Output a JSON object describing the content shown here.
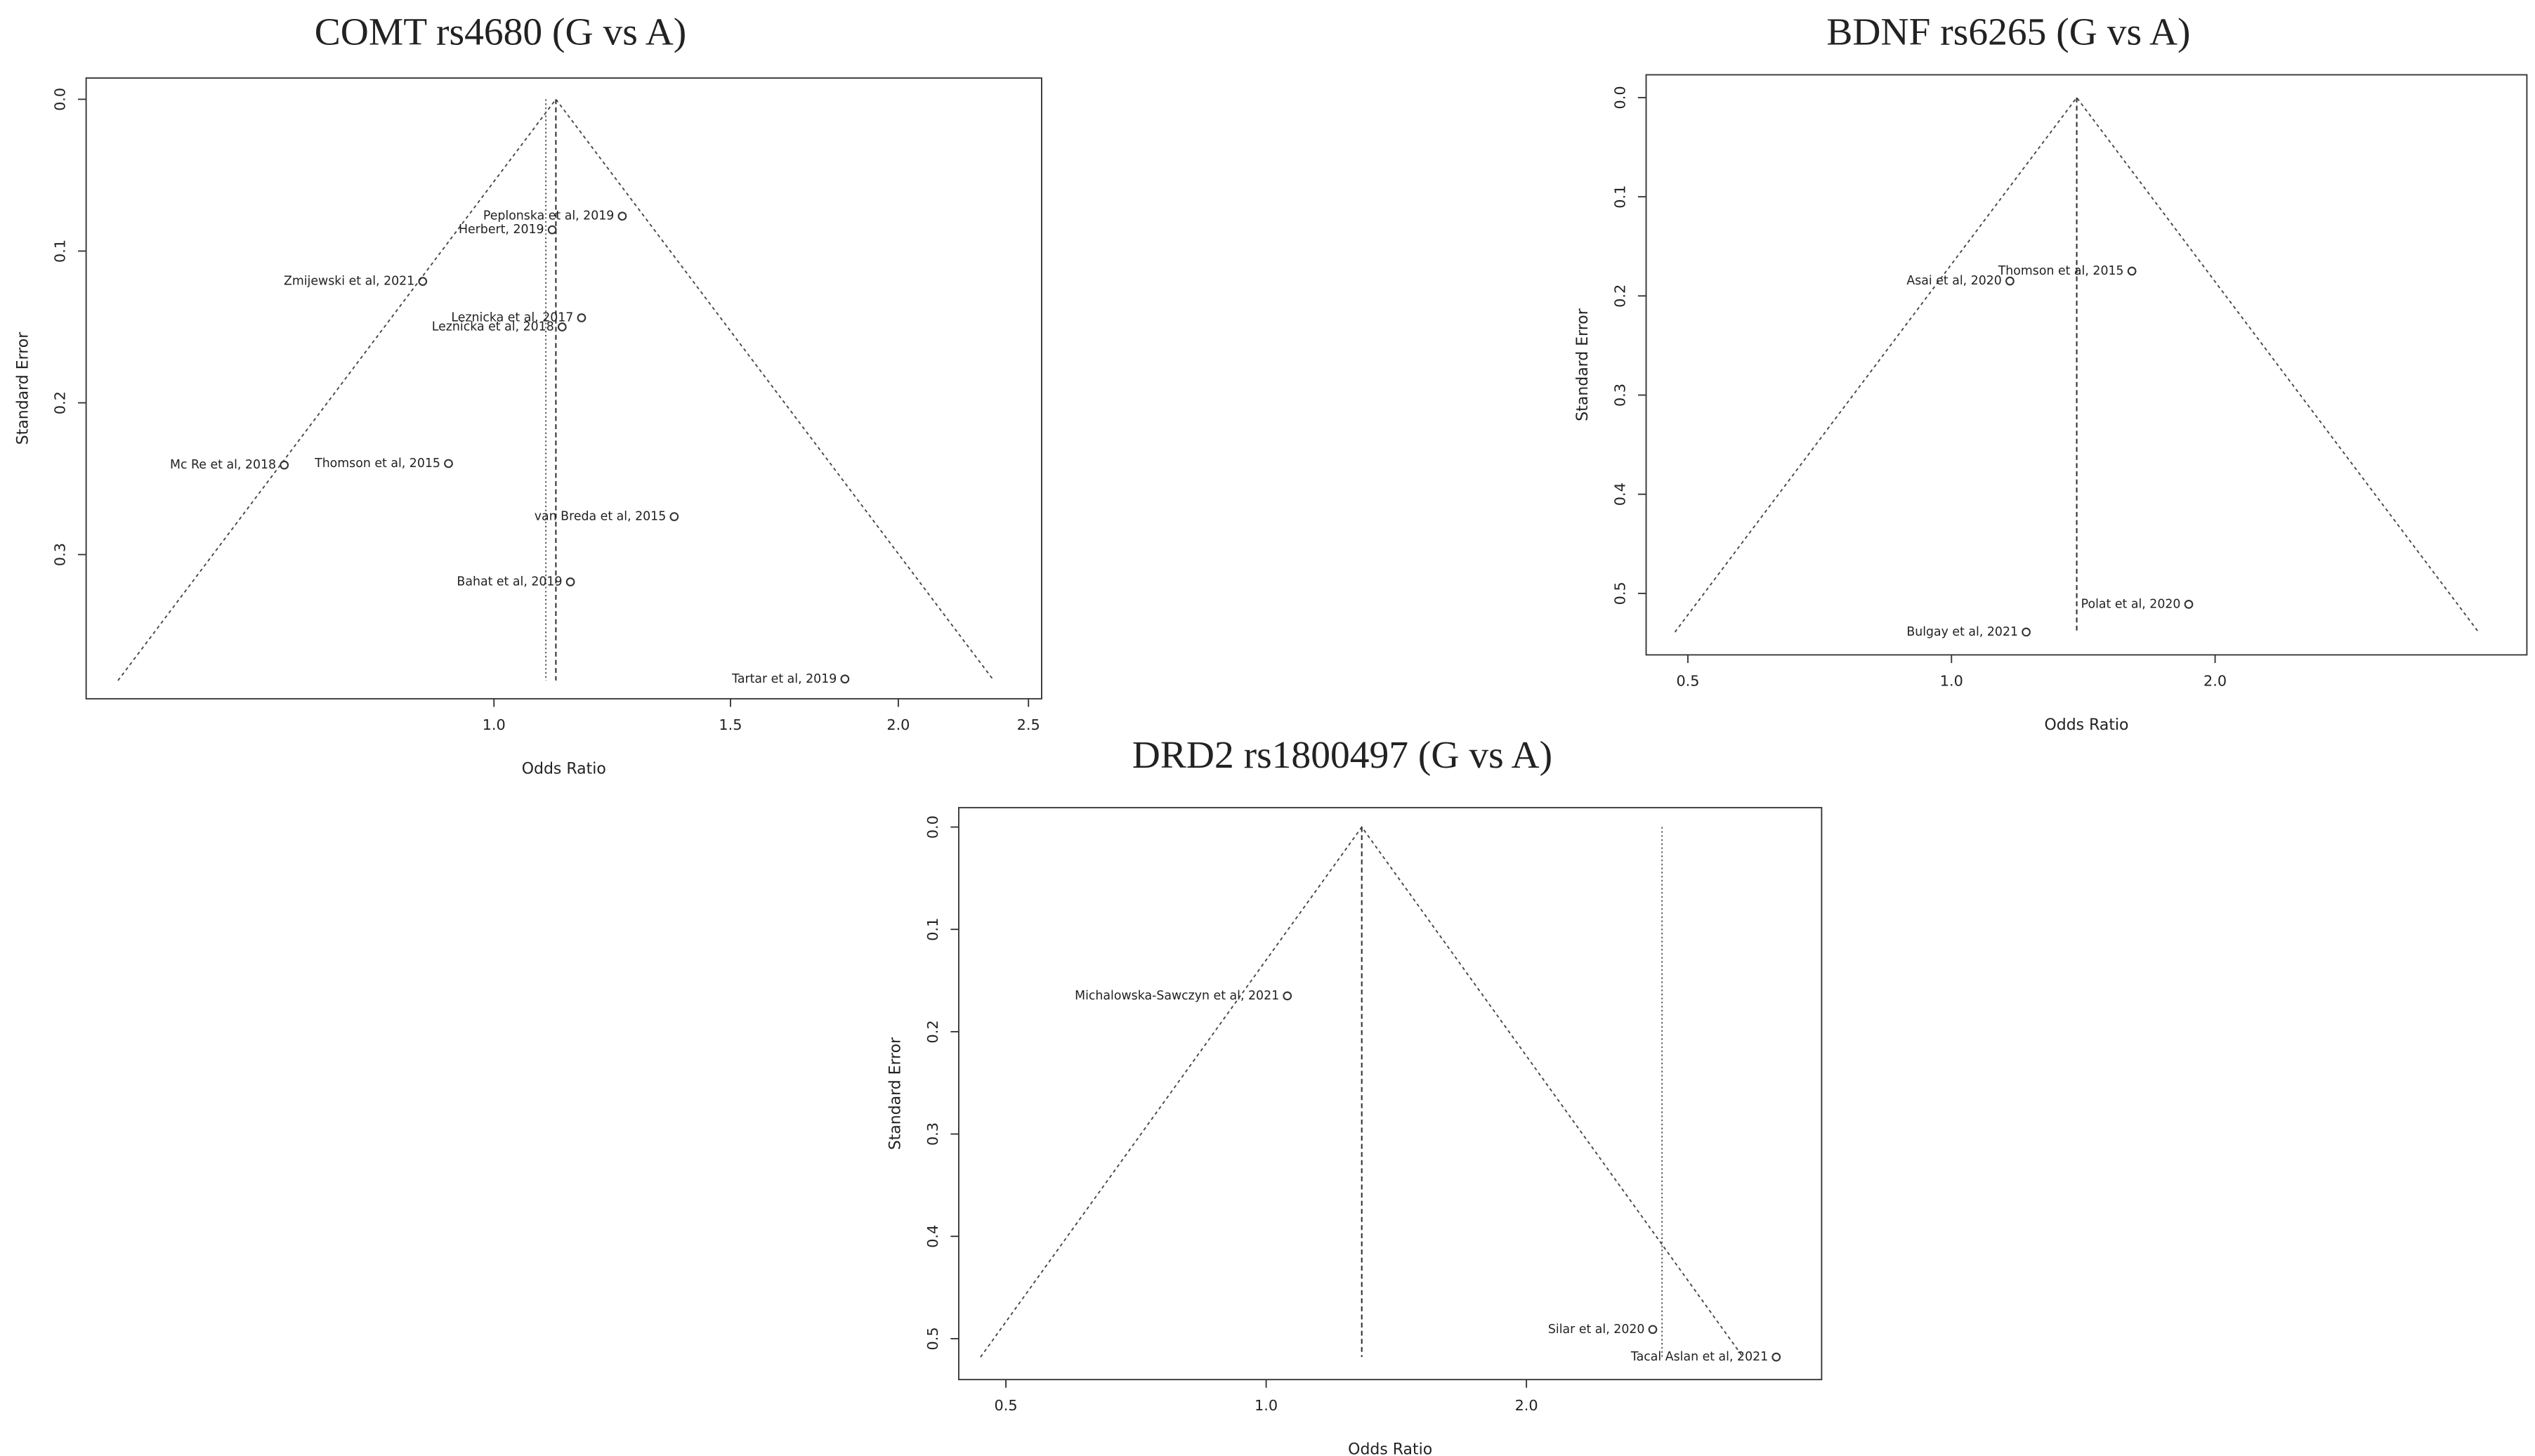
{
  "chart_data": [
    {
      "type": "funnel",
      "title": "COMT rs4680 (G vs A)",
      "xlabel": "Odds Ratio",
      "ylabel": "Standard Error",
      "log_x": true,
      "y_reversed": true,
      "color": "#333333",
      "xlim": [
        0.497,
        2.557
      ],
      "ylim": [
        -0.014,
        0.395
      ],
      "xticks": [
        {
          "value": 1,
          "label": "1.0"
        },
        1.5,
        {
          "value": 2,
          "label": "2.0"
        },
        2.5
      ],
      "yticks": [
        {
          "value": 0,
          "label": "0.0"
        },
        0.1,
        0.2,
        0.3
      ],
      "pooled": 1.112,
      "funnel_se_max": 0.383,
      "reference_lines": [
        1.093
      ],
      "labels": [
        "Peplonska et al, 2019",
        "Herbert, 2019",
        "Zmijewski et al, 2021",
        "Leznicka et al, 2017",
        "Leznicka et al, 2018",
        "Mc Re et al, 2018",
        "Thomson et al, 2015",
        "van Breda et al, 2015",
        "Bahat et al, 2019",
        "Tartar et al, 2019"
      ],
      "x": [
        1.246,
        1.105,
        0.885,
        1.162,
        1.124,
        0.698,
        0.925,
        1.362,
        1.14,
        1.825
      ],
      "values": [
        0.077,
        0.086,
        0.12,
        0.144,
        0.15,
        0.241,
        0.24,
        0.275,
        0.318,
        0.382
      ]
    },
    {
      "type": "funnel",
      "title": "BDNF rs6265 (G vs A)",
      "xlabel": "Odds Ratio",
      "ylabel": "Standard Error",
      "log_x": true,
      "y_reversed": true,
      "color": "#333333",
      "xlim": [
        0.448,
        4.54
      ],
      "ylim": [
        -0.023,
        0.562
      ],
      "xticks": [
        0.5,
        {
          "value": 1,
          "label": "1.0"
        },
        {
          "value": 2,
          "label": "2.0"
        }
      ],
      "yticks": [
        {
          "value": 0,
          "label": "0.0"
        },
        0.1,
        0.2,
        0.3,
        0.4,
        0.5
      ],
      "pooled": 1.39,
      "funnel_se_max": 0.539,
      "reference_lines": [],
      "labels": [
        "Thomson et al, 2015",
        "Asai et al, 2020",
        "Polat et al, 2020",
        "Bulgay et al, 2021"
      ],
      "x": [
        1.607,
        1.166,
        1.866,
        1.217
      ],
      "values": [
        0.175,
        0.185,
        0.511,
        0.539
      ]
    },
    {
      "type": "funnel",
      "title": "DRD2 rs1800497 (G vs A)",
      "xlabel": "Odds Ratio",
      "ylabel": "Standard Error",
      "log_x": true,
      "y_reversed": true,
      "color": "#333333",
      "xlim": [
        0.441,
        4.39
      ],
      "ylim": [
        -0.019,
        0.54
      ],
      "xticks": [
        0.5,
        {
          "value": 1,
          "label": "1.0"
        },
        {
          "value": 2,
          "label": "2.0"
        }
      ],
      "yticks": [
        {
          "value": 0,
          "label": "0.0"
        },
        0.1,
        0.2,
        0.3,
        0.4,
        0.5
      ],
      "pooled": 1.29,
      "funnel_se_max": 0.518,
      "reference_lines": [
        2.87
      ],
      "labels": [
        "Michalowska-Sawczyn et al, 2021",
        "Silar et al, 2020",
        "Tacal Aslan et al, 2021"
      ],
      "x": [
        1.058,
        2.8,
        3.89
      ],
      "values": [
        0.165,
        0.491,
        0.518
      ]
    }
  ]
}
